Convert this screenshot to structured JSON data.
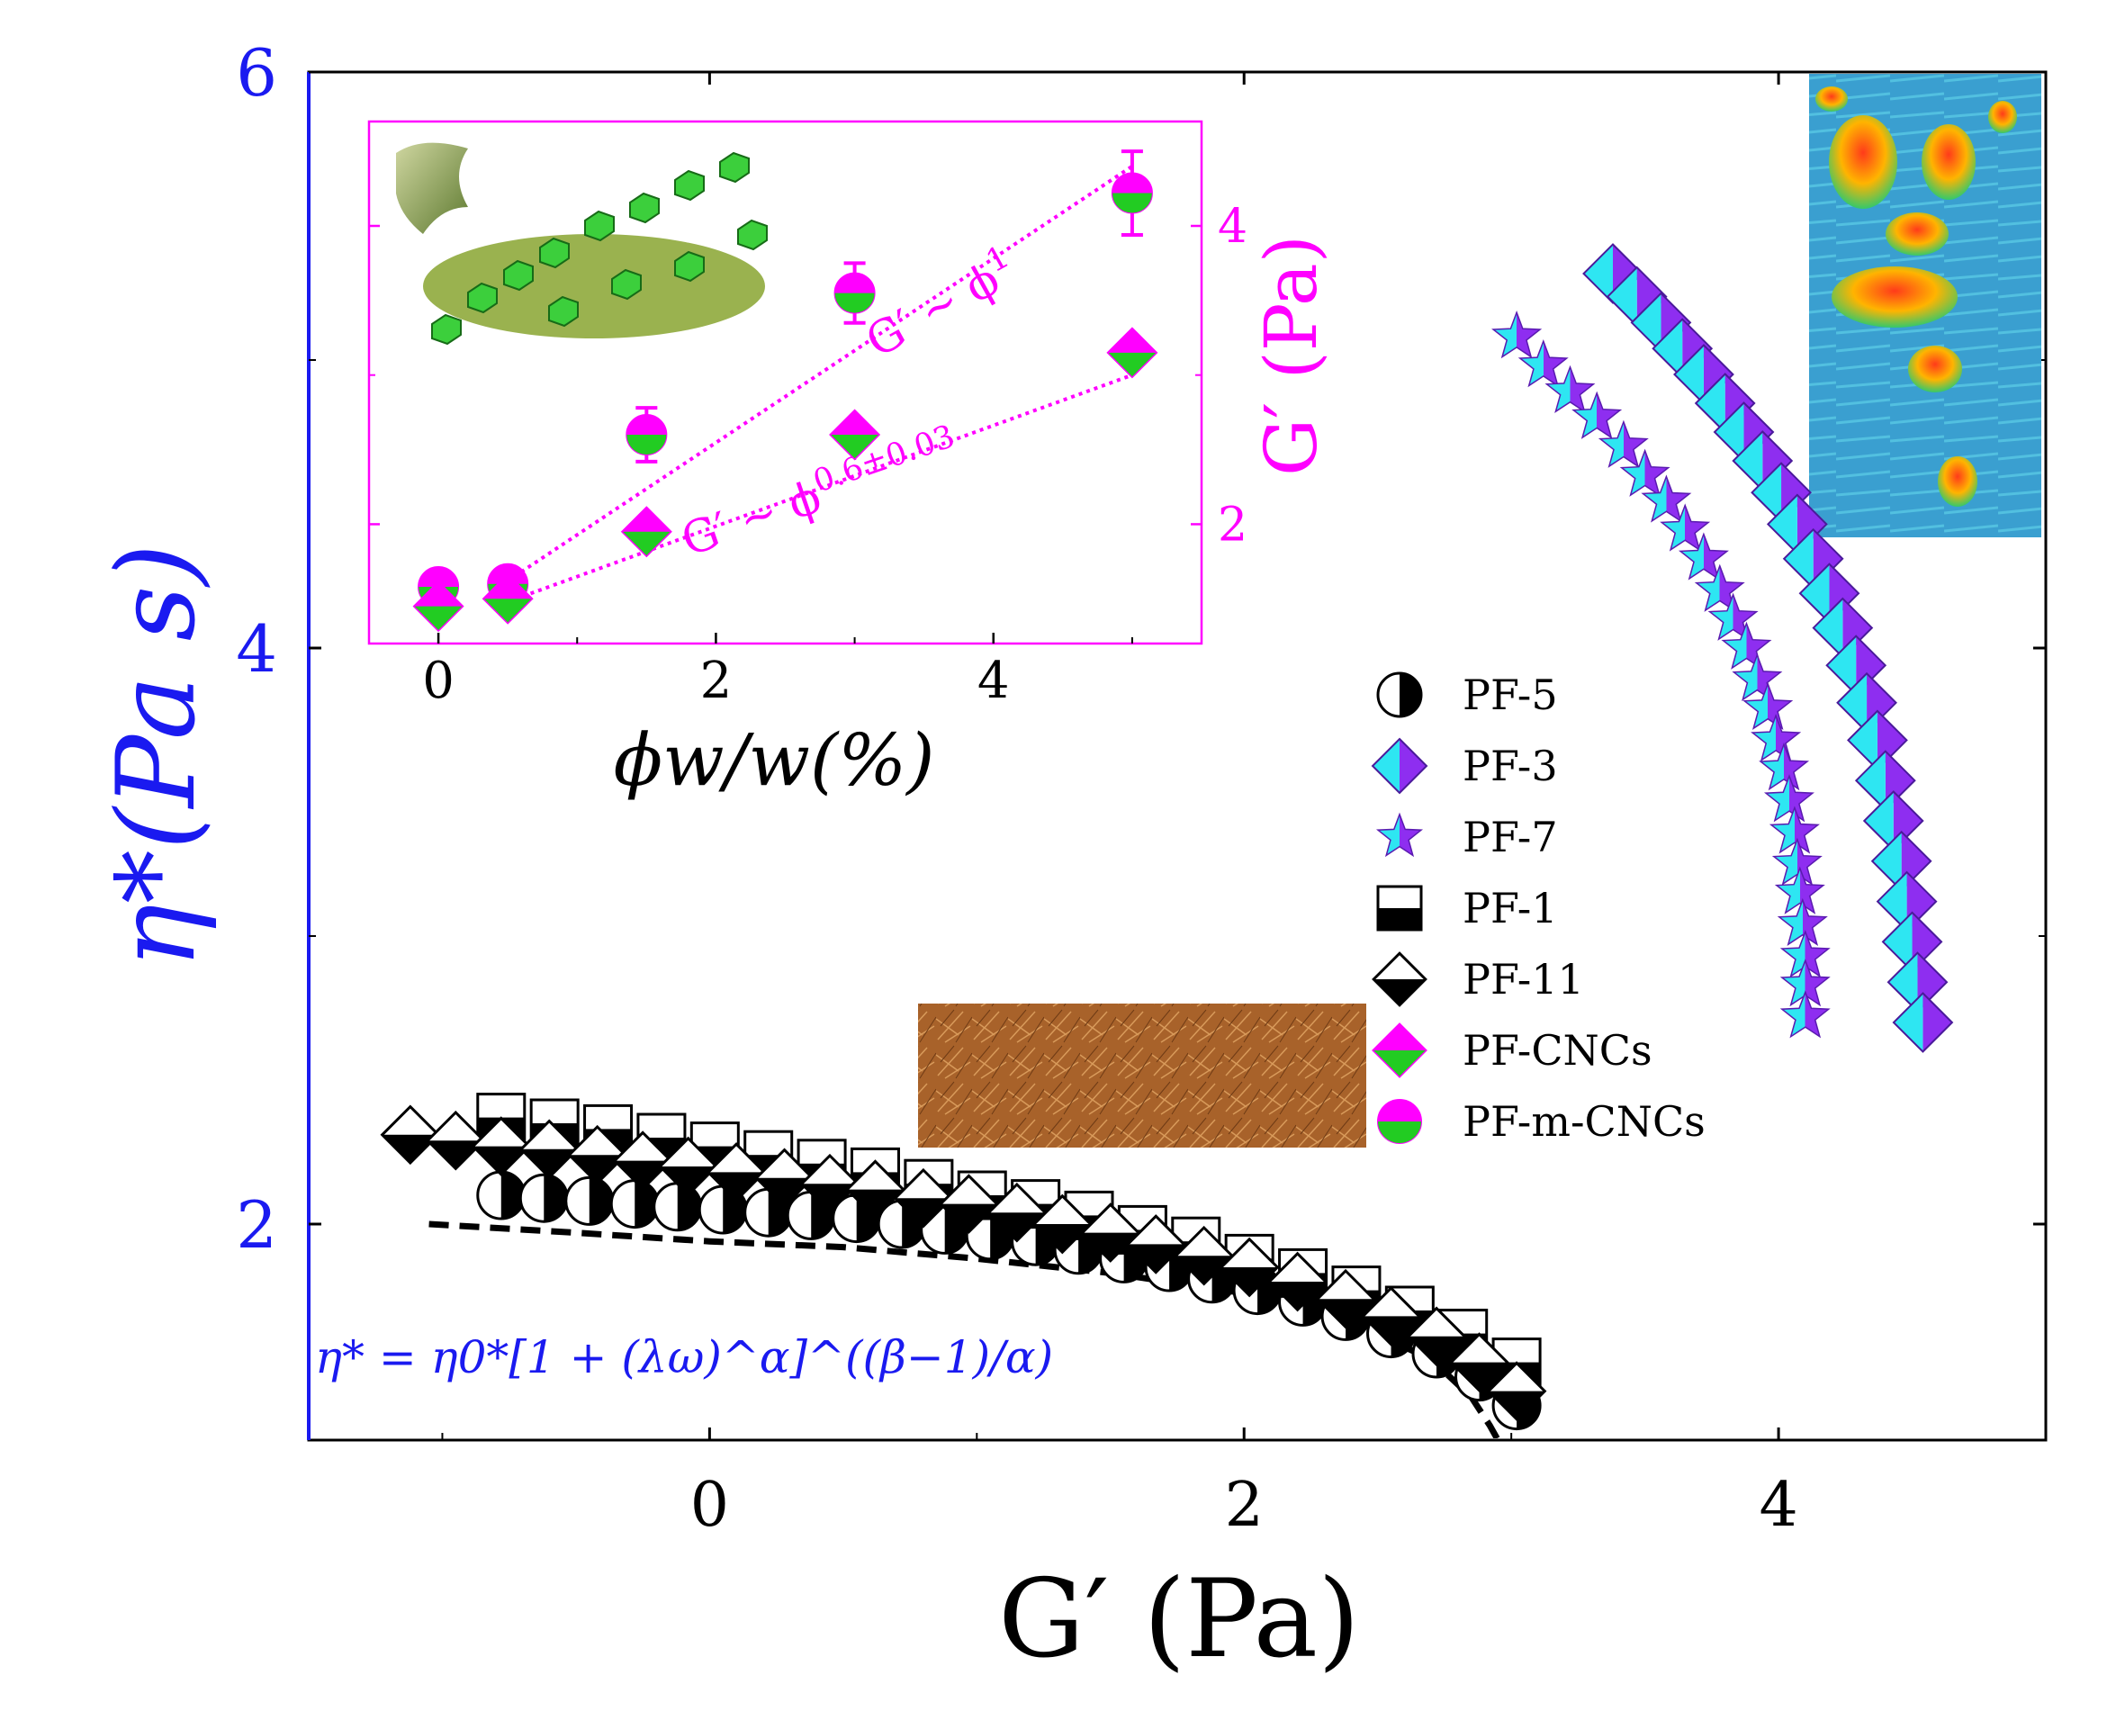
{
  "chart_data": {
    "type": "scatter",
    "main": {
      "xlabel": "G′ (Pa)",
      "ylabel": "η*(Pa s)",
      "xlim": [
        -1.5,
        5
      ],
      "ylim": [
        1.25,
        6
      ],
      "x_ticks": [
        0,
        2,
        4
      ],
      "y_ticks": [
        2,
        4,
        6
      ],
      "x_tick_labels": [
        "0",
        "2",
        "4"
      ],
      "y_tick_labels": [
        "2",
        "4",
        "6"
      ],
      "legend_position": "right",
      "formula": "η* = η0*[1 + (λω)^α]^((β−1)/α)",
      "series": [
        {
          "name": "PF-5",
          "marker": "half-circle",
          "colors": [
            "#000000",
            "#ffffff"
          ],
          "x": [
            -0.78,
            -0.62,
            -0.45,
            -0.28,
            -0.12,
            0.05,
            0.22,
            0.38,
            0.55,
            0.72,
            0.88,
            1.05,
            1.22,
            1.38,
            1.55,
            1.72,
            1.88,
            2.05,
            2.22,
            2.38,
            2.55,
            2.72,
            2.88,
            3.02
          ],
          "y": [
            2.1,
            2.09,
            2.08,
            2.07,
            2.06,
            2.05,
            2.04,
            2.03,
            2.02,
            2.0,
            1.98,
            1.96,
            1.94,
            1.91,
            1.88,
            1.85,
            1.81,
            1.77,
            1.73,
            1.68,
            1.62,
            1.55,
            1.47,
            1.37
          ]
        },
        {
          "name": "PF-1",
          "marker": "half-square",
          "colors": [
            "#000000",
            "#ffffff"
          ],
          "x": [
            -0.78,
            -0.58,
            -0.38,
            -0.18,
            0.02,
            0.22,
            0.42,
            0.62,
            0.82,
            1.02,
            1.22,
            1.42,
            1.62,
            1.82,
            2.02,
            2.22,
            2.42,
            2.62,
            2.82,
            3.02
          ],
          "y": [
            2.37,
            2.35,
            2.33,
            2.3,
            2.27,
            2.24,
            2.21,
            2.18,
            2.14,
            2.1,
            2.07,
            2.03,
            1.98,
            1.94,
            1.88,
            1.83,
            1.77,
            1.7,
            1.62,
            1.52
          ]
        },
        {
          "name": "PF-11",
          "marker": "half-diamond",
          "colors": [
            "#000000",
            "#ffffff"
          ],
          "x": [
            -1.12,
            -0.95,
            -0.78,
            -0.6,
            -0.42,
            -0.25,
            -0.08,
            0.1,
            0.28,
            0.45,
            0.62,
            0.8,
            0.97,
            1.15,
            1.32,
            1.5,
            1.67,
            1.85,
            2.02,
            2.2,
            2.38,
            2.55,
            2.72,
            2.88,
            3.02
          ],
          "y": [
            2.31,
            2.29,
            2.27,
            2.26,
            2.24,
            2.22,
            2.2,
            2.18,
            2.16,
            2.14,
            2.12,
            2.09,
            2.07,
            2.04,
            2.0,
            1.97,
            1.93,
            1.89,
            1.85,
            1.8,
            1.74,
            1.68,
            1.61,
            1.52,
            1.42
          ]
        },
        {
          "name": "PF-3",
          "marker": "split-diamond",
          "colors": [
            "#8e2ef0",
            "#2ee6f2"
          ],
          "x": [
            3.38,
            3.47,
            3.56,
            3.64,
            3.72,
            3.8,
            3.87,
            3.94,
            4.01,
            4.07,
            4.13,
            4.19,
            4.24,
            4.29,
            4.33,
            4.37,
            4.4,
            4.43,
            4.46,
            4.48,
            4.5,
            4.52,
            4.54
          ],
          "y": [
            5.3,
            5.22,
            5.13,
            5.04,
            4.95,
            4.85,
            4.75,
            4.65,
            4.54,
            4.43,
            4.31,
            4.19,
            4.07,
            3.94,
            3.81,
            3.68,
            3.54,
            3.4,
            3.26,
            3.12,
            2.98,
            2.84,
            2.7
          ]
        },
        {
          "name": "PF-7",
          "marker": "star",
          "colors": [
            "#8e2ef0",
            "#2ee6f2"
          ],
          "x": [
            3.02,
            3.12,
            3.22,
            3.32,
            3.42,
            3.5,
            3.58,
            3.65,
            3.72,
            3.78,
            3.83,
            3.88,
            3.92,
            3.96,
            3.99,
            4.02,
            4.04,
            4.06,
            4.07,
            4.08,
            4.09,
            4.1,
            4.1,
            4.1
          ],
          "y": [
            5.08,
            4.98,
            4.89,
            4.8,
            4.7,
            4.6,
            4.51,
            4.41,
            4.31,
            4.2,
            4.1,
            4.0,
            3.89,
            3.79,
            3.68,
            3.58,
            3.47,
            3.36,
            3.25,
            3.15,
            3.04,
            2.93,
            2.83,
            2.72
          ]
        }
      ],
      "fit_curve": {
        "style": "dashed",
        "color": "#000000",
        "x": [
          -1.05,
          -0.5,
          0,
          0.5,
          1.0,
          1.5,
          2.0,
          2.4,
          2.7,
          2.85,
          2.92,
          2.95
        ],
        "y": [
          2.0,
          1.97,
          1.94,
          1.92,
          1.88,
          1.83,
          1.76,
          1.66,
          1.53,
          1.4,
          1.3,
          1.25
        ]
      }
    },
    "inset": {
      "xlabel": "ϕw/w(%)",
      "ylabel": "G′ (Pa)",
      "xlim": [
        -0.5,
        5.5
      ],
      "ylim": [
        1.2,
        4.7
      ],
      "x_ticks": [
        0,
        2,
        4
      ],
      "y_ticks": [
        2,
        4
      ],
      "x_tick_labels": [
        "0",
        "2",
        "4"
      ],
      "y_tick_labels": [
        "2",
        "4"
      ],
      "series": [
        {
          "name": "PF-m-CNCs",
          "marker": "half-circle",
          "colors": [
            "#ff00ff",
            "#22cc22"
          ],
          "x": [
            0,
            0.5,
            1.5,
            3,
            5
          ],
          "y": [
            1.58,
            1.6,
            2.6,
            3.55,
            4.22
          ],
          "err": [
            0.05,
            0.05,
            0.18,
            0.2,
            0.28
          ]
        },
        {
          "name": "PF-CNCs",
          "marker": "half-diamond",
          "colors": [
            "#ff00ff",
            "#22cc22"
          ],
          "x": [
            0,
            0.5,
            1.5,
            3,
            5
          ],
          "y": [
            1.45,
            1.5,
            1.95,
            2.6,
            3.15
          ],
          "err": [
            0.04,
            0.04,
            0.06,
            0.08,
            0.08
          ]
        }
      ],
      "fit_lines": [
        {
          "label_base": "G′ ∼ ϕ",
          "exponent": "1",
          "x": [
            0.5,
            5
          ],
          "y": [
            1.62,
            4.4
          ]
        },
        {
          "label_base": "G′ ∼ ϕ",
          "exponent": "0.6±0.03",
          "x": [
            0.5,
            5
          ],
          "y": [
            1.48,
            3.0
          ]
        }
      ]
    }
  }
}
